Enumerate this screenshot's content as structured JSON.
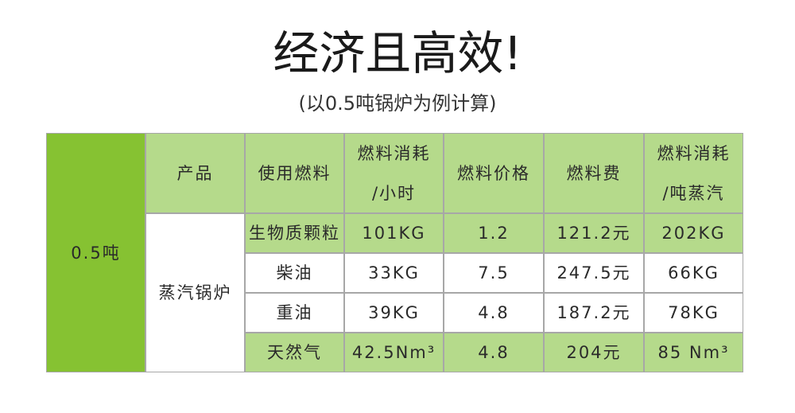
{
  "header": {
    "title": "经济且高效!",
    "subtitle": "(以0.5吨锅炉为例计算)"
  },
  "table": {
    "corner": "0.5吨",
    "headers": [
      "产品",
      "使用燃料",
      "燃料消耗\n/小时",
      "燃料价格",
      "燃料费",
      "燃料消耗\n/吨蒸汽"
    ],
    "group": "蒸汽锅炉",
    "rows": [
      [
        "生物质颗粒",
        "101KG",
        "1.2",
        "121.2元",
        "202KG"
      ],
      [
        "柴油",
        "33KG",
        "7.5",
        "247.5元",
        "66KG"
      ],
      [
        "重油",
        "39KG",
        "4.8",
        "187.2元",
        "78KG"
      ],
      [
        "天然气",
        "42.5Nm³",
        "4.8",
        "204元",
        "85 Nm³"
      ]
    ]
  }
}
